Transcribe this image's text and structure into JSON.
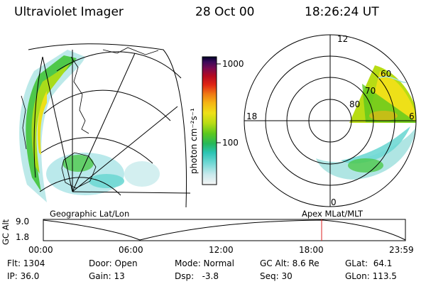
{
  "header": {
    "instrument": "Ultraviolet Imager",
    "date": "28 Oct 00",
    "time": "18:26:24 UT"
  },
  "colorbar": {
    "unit_label": "photon cm⁻²s⁻¹",
    "ticks": [
      "1000",
      "100"
    ],
    "colors": [
      "#f5f5f5",
      "#c8e9ec",
      "#6fd8d4",
      "#2bc4b4",
      "#26b85a",
      "#5cc81e",
      "#b8dc14",
      "#eee018",
      "#f5b414",
      "#ef7814",
      "#e02614",
      "#b40a20",
      "#780a50",
      "#3c0a5a",
      "#000028"
    ]
  },
  "left_panel": {
    "caption": "Geographic Lat/Lon"
  },
  "right_panel": {
    "caption": "Apex MLat/MLT",
    "mlt_labels": {
      "top": "12",
      "left": "18",
      "right": "6",
      "bottom": "0"
    },
    "lat_labels": [
      "60",
      "70",
      "80"
    ]
  },
  "altitude_plot": {
    "ylabel": "GC Alt",
    "yticks": [
      "9.0",
      "1.8"
    ],
    "xticks": [
      "00:00",
      "06:00",
      "12:00",
      "18:00",
      "23:59"
    ],
    "current_time_marker": "18:26",
    "marker_color": "#dd2020"
  },
  "status": {
    "row1": [
      {
        "name": "flt",
        "text": "Flt: 1304"
      },
      {
        "name": "door",
        "text": "Door: Open"
      },
      {
        "name": "mode",
        "text": "Mode: Normal"
      },
      {
        "name": "gc-alt",
        "text": "GC Alt: 8.6 Re"
      },
      {
        "name": "glat",
        "text": "GLat:  64.1"
      }
    ],
    "row2": [
      {
        "name": "ip",
        "text": "IP: 36.0"
      },
      {
        "name": "gain",
        "text": "Gain: 13"
      },
      {
        "name": "dsp",
        "text": "Dsp:   -3.8"
      },
      {
        "name": "seq",
        "text": "Seq: 30"
      },
      {
        "name": "glon",
        "text": "GLon: 113.5"
      }
    ]
  }
}
